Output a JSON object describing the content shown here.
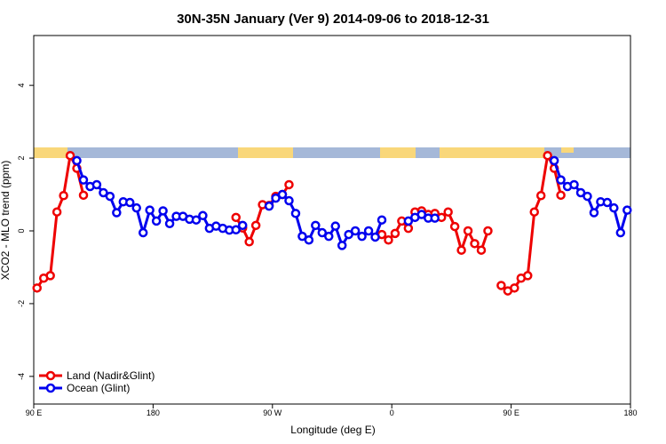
{
  "chart_data": {
    "type": "line",
    "title": "30N-35N January (Ver 9)   2014-09-06 to 2018-12-31",
    "x_label": "Longitude (deg E)",
    "y_label": "XCO2 - MLO trend (ppm)",
    "x": [
      92.5,
      97.5,
      102.5,
      107.5,
      112.5,
      117.5,
      122.5,
      127.5,
      132.5,
      137.5,
      142.5,
      147.5,
      152.5,
      157.5,
      162.5,
      167.5,
      172.5,
      177.5,
      182.5,
      187.5,
      192.5,
      197.5,
      202.5,
      207.5,
      212.5,
      217.5,
      222.5,
      227.5,
      232.5,
      237.5,
      242.5,
      247.5,
      252.5,
      257.5,
      262.5,
      267.5,
      272.5,
      277.5,
      282.5,
      287.5,
      292.5,
      297.5,
      302.5,
      307.5,
      312.5,
      317.5,
      322.5,
      327.5,
      332.5,
      337.5,
      342.5,
      347.5,
      352.5,
      357.5,
      362.5,
      367.5,
      372.5,
      377.5,
      382.5,
      387.5,
      392.5,
      397.5,
      402.5,
      407.5,
      412.5,
      417.5,
      422.5,
      427.5,
      432.5,
      437.5,
      442.5,
      447.5,
      452.5,
      457.5,
      462.5,
      467.5,
      472.5,
      477.5,
      482.5,
      487.5,
      492.5,
      497.5,
      502.5,
      507.5,
      512.5,
      517.5,
      522.5,
      527.5,
      532.5,
      537.5
    ],
    "series": [
      {
        "name": "Land (Nadir&Glint)",
        "color": "#ee0000",
        "values": [
          -1.57,
          -1.3,
          -1.23,
          0.52,
          0.97,
          2.07,
          1.72,
          0.98,
          null,
          null,
          null,
          null,
          null,
          null,
          null,
          null,
          null,
          null,
          null,
          null,
          null,
          null,
          null,
          null,
          null,
          null,
          null,
          null,
          null,
          null,
          0.37,
          0.08,
          -0.3,
          0.15,
          0.72,
          0.7,
          0.95,
          1.0,
          1.27,
          null,
          null,
          null,
          null,
          null,
          null,
          null,
          null,
          null,
          null,
          null,
          null,
          null,
          -0.1,
          -0.25,
          -0.07,
          0.27,
          0.07,
          0.52,
          0.55,
          0.45,
          0.48,
          0.37,
          0.52,
          0.12,
          -0.53,
          0,
          -0.35,
          -0.53,
          0,
          null,
          -1.5,
          -1.65,
          -1.57,
          -1.3,
          -1.23,
          0.52,
          0.97,
          2.07,
          1.72,
          0.98,
          null,
          null,
          null,
          null,
          null,
          null,
          null,
          null,
          null,
          null
        ]
      },
      {
        "name": "Ocean (Glint)",
        "color": "#0000ee",
        "values": [
          null,
          null,
          null,
          null,
          null,
          null,
          1.93,
          1.4,
          1.22,
          1.27,
          1.05,
          0.95,
          0.5,
          0.8,
          0.78,
          0.63,
          -0.05,
          0.57,
          0.27,
          0.55,
          0.2,
          0.4,
          0.4,
          0.32,
          0.3,
          0.42,
          0.07,
          0.13,
          0.07,
          0.02,
          0.03,
          0.15,
          null,
          null,
          null,
          0.68,
          0.9,
          1.0,
          0.83,
          0.48,
          -0.15,
          -0.25,
          0.15,
          -0.05,
          -0.15,
          0.13,
          -0.4,
          -0.1,
          0,
          -0.15,
          0,
          -0.17,
          0.3,
          null,
          null,
          null,
          0.27,
          0.37,
          0.45,
          0.35,
          0.35,
          null,
          null,
          null,
          null,
          null,
          null,
          null,
          null,
          null,
          null,
          null,
          null,
          null,
          null,
          null,
          null,
          null,
          1.93,
          1.4,
          1.22,
          1.27,
          1.05,
          0.95,
          0.5,
          0.8,
          0.78,
          0.63,
          -0.05,
          0.57
        ]
      }
    ],
    "xlim": [
      90,
      540
    ],
    "xticks": [
      {
        "value": 90,
        "label": "90 E"
      },
      180,
      {
        "value": 270,
        "label": "90 W"
      },
      {
        "value": 360,
        "label": "0"
      },
      {
        "value": 450,
        "label": "90 E"
      },
      {
        "value": 540,
        "label": "180"
      }
    ],
    "ylim": [
      -4.76,
      5.37
    ],
    "yticks": [
      -4,
      -2,
      0,
      2,
      4
    ],
    "legend": "bottom-left"
  }
}
